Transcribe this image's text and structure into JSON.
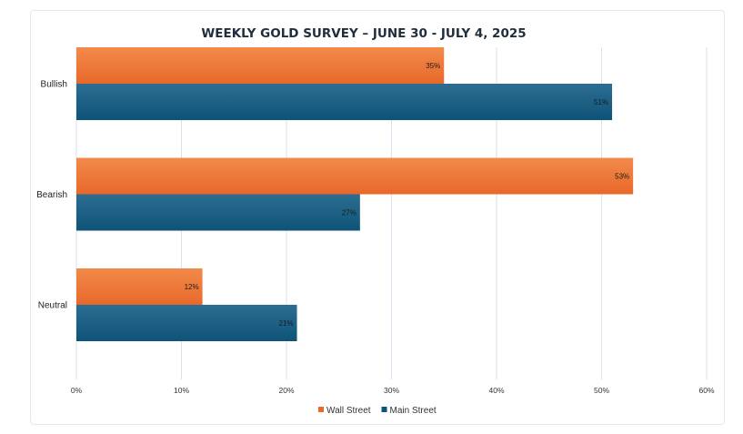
{
  "chart_data": {
    "type": "bar",
    "orientation": "horizontal",
    "title": "WEEKLY GOLD SURVEY – JUNE 30 - JULY 4, 2025",
    "categories": [
      "Bullish",
      "Bearish",
      "Neutral"
    ],
    "series": [
      {
        "name": "Wall Street",
        "values": [
          35,
          53,
          12
        ]
      },
      {
        "name": "Main Street",
        "values": [
          51,
          27,
          21
        ]
      }
    ],
    "data_labels": [
      [
        "35%",
        "53%",
        "12%"
      ],
      [
        "51%",
        "27%",
        "21%"
      ]
    ],
    "xlabel": "",
    "ylabel": "",
    "xlim": [
      0,
      60
    ],
    "xticks": [
      0,
      10,
      20,
      30,
      40,
      50,
      60
    ],
    "xtick_labels": [
      "0%",
      "10%",
      "20%",
      "30%",
      "40%",
      "50%",
      "60%"
    ],
    "grid": true,
    "legend_position": "bottom"
  },
  "colors": {
    "Wall Street": [
      "#f28a4a",
      "#e8692a"
    ],
    "Main Street": [
      "#2d6d92",
      "#0e5478"
    ]
  }
}
